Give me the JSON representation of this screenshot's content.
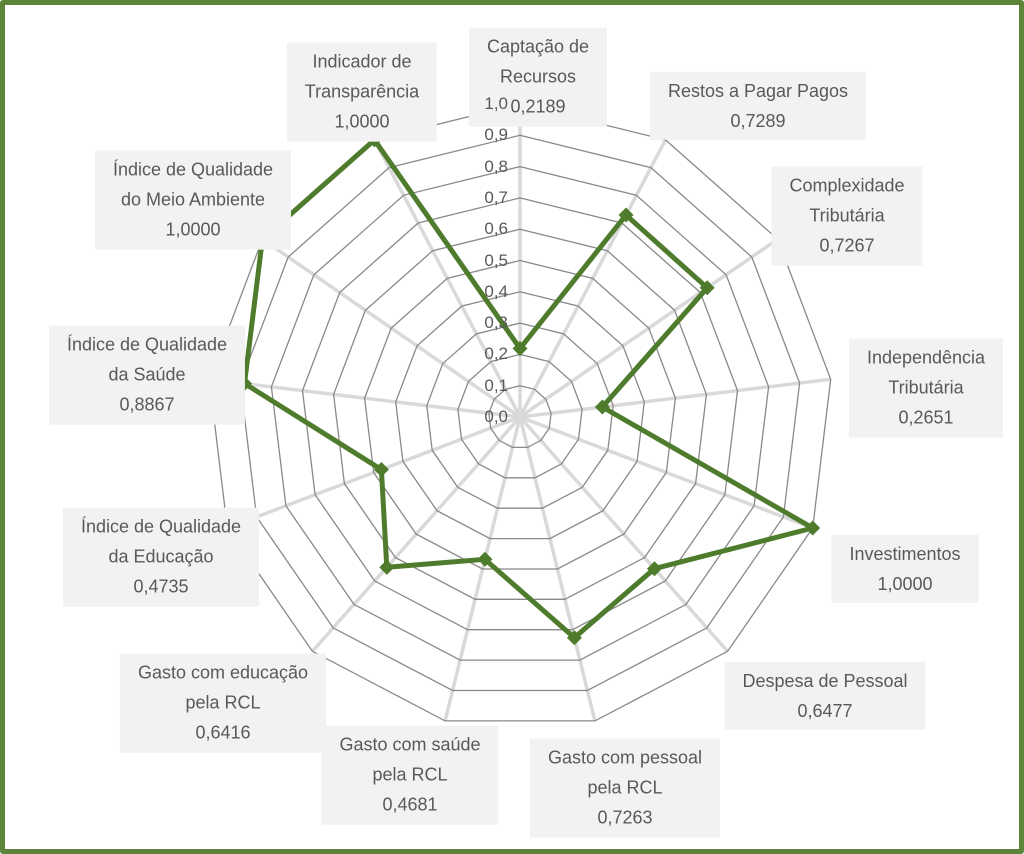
{
  "chart_data": {
    "type": "radar",
    "title": "",
    "legend_position": "none",
    "grid": true,
    "axis_range": [
      0.0,
      1.0
    ],
    "axis_tick_step": 0.1,
    "axis_tick_labels": [
      "0,0",
      "0,1",
      "0,2",
      "0,3",
      "0,4",
      "0,5",
      "0,6",
      "0,7",
      "0,8",
      "0,9",
      "1,0"
    ],
    "categories": [
      "Captação de Recursos",
      "Restos a Pagar Pagos",
      "Complexidade Tributária",
      "Independência Tributária",
      "Investimentos",
      "Despesa de Pessoal",
      "Gasto com pessoal pela RCL",
      "Gasto com saúde pela RCL",
      "Gasto com educação pela RCL",
      "Índice de Qualidade da Educação",
      "Índice de Qualidade da Saúde",
      "Índice de Qualidade do Meio Ambiente",
      "Indicador de Transparência"
    ],
    "values": [
      0.2189,
      0.7289,
      0.7267,
      0.2651,
      1.0,
      0.6477,
      0.7263,
      0.4681,
      0.6416,
      0.4735,
      0.8867,
      1.0,
      1.0
    ],
    "value_labels": [
      "0,2189",
      "0,7289",
      "0,7267",
      "0,2651",
      "1,0000",
      "0,6477",
      "0,7263",
      "0,4681",
      "0,6416",
      "0,4735",
      "0,8867",
      "1,0000",
      "1,0000"
    ],
    "category_label_lines": [
      [
        "Captação de",
        "Recursos"
      ],
      [
        "Restos a Pagar Pagos"
      ],
      [
        "Complexidade",
        "Tributária"
      ],
      [
        "Independência",
        "Tributária"
      ],
      [
        "Investimentos"
      ],
      [
        "Despesa de Pessoal"
      ],
      [
        "Gasto com pessoal",
        "pela RCL"
      ],
      [
        "Gasto com saúde",
        "pela RCL"
      ],
      [
        "Gasto com educação",
        "pela RCL"
      ],
      [
        "Índice de Qualidade",
        "da Educação"
      ],
      [
        "Índice de Qualidade",
        "da Saúde"
      ],
      [
        "Índice de Qualidade",
        "do Meio Ambiente"
      ],
      [
        "Indicador de",
        "Transparência"
      ]
    ],
    "colors": {
      "series_line": "#4e7c2c",
      "marker": "#4e7c2c",
      "spokes": "#d9d9d9",
      "rings": "#898989",
      "label_background": "#f2f2f2",
      "label_text": "#595959",
      "tick_text": "#595959",
      "frame_border": "#5c843b",
      "background": "#ffffff"
    }
  }
}
